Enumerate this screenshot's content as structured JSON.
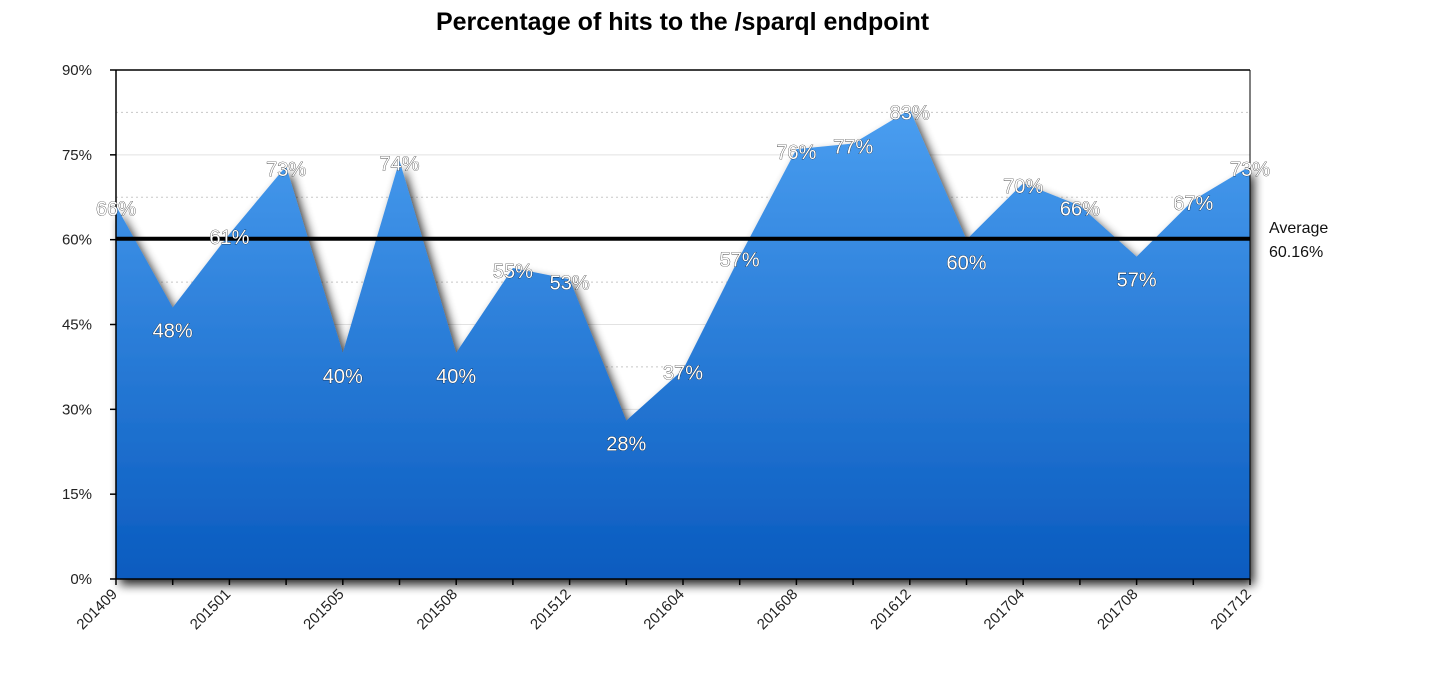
{
  "chart_data": {
    "type": "area",
    "title": "Percentage of hits to the /sparql endpoint",
    "xlabel": "",
    "ylabel": "",
    "ylim": [
      0,
      90
    ],
    "y_ticks": [
      "0%",
      "15%",
      "30%",
      "45%",
      "60%",
      "75%",
      "90%"
    ],
    "y_tick_values": [
      0,
      15,
      30,
      45,
      60,
      75,
      90
    ],
    "x_tick_labels": [
      "201409",
      "201501",
      "201505",
      "201508",
      "201512",
      "201604",
      "201608",
      "201612",
      "201704",
      "201708",
      "201712"
    ],
    "x_tick_label_indices": [
      0,
      2,
      4,
      6,
      8,
      10,
      12,
      14,
      16,
      18,
      20
    ],
    "series": [
      {
        "values": [
          66,
          48,
          61,
          73,
          40,
          74,
          40,
          55,
          53,
          28,
          37,
          57,
          76,
          77,
          83,
          60,
          70,
          66,
          57,
          67,
          73
        ],
        "labels": [
          "66%",
          "48%",
          "61%",
          "73%",
          "40%",
          "74%",
          "40%",
          "55%",
          "53%",
          "28%",
          "37%",
          "57%",
          "76%",
          "77%",
          "83%",
          "60%",
          "70%",
          "66%",
          "57%",
          "67%",
          "73%"
        ]
      }
    ],
    "average": {
      "label": "Average",
      "value_text": "60.16%",
      "value": 60.16
    },
    "grid": true,
    "colors": {
      "fill_top": "#4a9ef0",
      "fill_bottom": "#0a5bbf",
      "average_line": "#000000"
    }
  }
}
